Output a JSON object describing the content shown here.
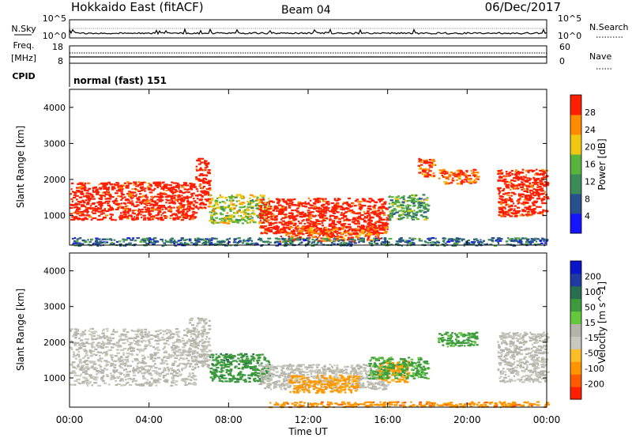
{
  "header": {
    "station": "Hokkaido East (fitACF)",
    "beam": "Beam 04",
    "date": "06/Dec/2017"
  },
  "nsky_panel": {
    "left_label": "N.Sky",
    "right_label": "N.Search",
    "left_ticks": [
      "10^5",
      "10^0"
    ],
    "right_ticks": [
      "10^5",
      "10^0"
    ]
  },
  "freq_panel": {
    "left_label_1": "Freq.",
    "left_label_2": "[MHz]",
    "right_label": "Nave",
    "left_ticks": [
      "18",
      "8"
    ],
    "right_ticks": [
      "60",
      "0"
    ]
  },
  "cpid_panel": {
    "left_label": "CPID",
    "text": "normal (fast) 151"
  },
  "colors": {
    "scale": [
      "#0000ff",
      "#2850a0",
      "#3c8c64",
      "#64b446",
      "#f0c800",
      "#f07800",
      "#ff0000"
    ],
    "power_scale": [
      "#1414ff",
      "#28508c",
      "#3c8c5a",
      "#5ab43c",
      "#f0c814",
      "#ff8c00",
      "#ff1e00"
    ],
    "velocity_scale": [
      "#ff1e00",
      "#ff5a00",
      "#ff9600",
      "#ffbe28",
      "#c8c8be",
      "#b4b4aa",
      "#64c83c",
      "#3c9b3c",
      "#286e50",
      "#1e3ca0",
      "#0a14c8"
    ],
    "ground": "#c0c0b8"
  },
  "chart_data": [
    {
      "type": "heatmap",
      "title": "",
      "ylabel": "Slant Range [km]",
      "xlabel": "",
      "colorbar_label": "Power [dB]",
      "colorbar_ticks": [
        "4",
        "8",
        "12",
        "16",
        "20",
        "24",
        "28"
      ],
      "x_ticks": [
        "00:00",
        "04:00",
        "08:00",
        "12:00",
        "16:00",
        "20:00",
        "00:00"
      ],
      "y_ticks": [
        "1000",
        "2000",
        "3000",
        "4000"
      ],
      "xlim_hours": [
        0,
        24
      ],
      "ylim_km": [
        180,
        4500
      ],
      "echo_regions": [
        {
          "t_start": 0.0,
          "t_end": 6.3,
          "range_min": 900,
          "range_max": 1950,
          "power_db": 28
        },
        {
          "t_start": 6.3,
          "t_end": 7.0,
          "range_min": 1200,
          "range_max": 2600,
          "power_db": 28
        },
        {
          "t_start": 7.0,
          "t_end": 10.0,
          "range_min": 800,
          "range_max": 1600,
          "power_db": 16
        },
        {
          "t_start": 9.5,
          "t_end": 16.0,
          "range_min": 500,
          "range_max": 1500,
          "power_db": 28
        },
        {
          "t_start": 10.5,
          "t_end": 15.5,
          "range_min": 300,
          "range_max": 700,
          "power_db": 24
        },
        {
          "t_start": 16.0,
          "t_end": 18.0,
          "range_min": 900,
          "range_max": 1600,
          "power_db": 12
        },
        {
          "t_start": 17.5,
          "t_end": 18.3,
          "range_min": 2100,
          "range_max": 2600,
          "power_db": 24
        },
        {
          "t_start": 18.5,
          "t_end": 20.5,
          "range_min": 1900,
          "range_max": 2300,
          "power_db": 24
        },
        {
          "t_start": 21.5,
          "t_end": 24.0,
          "range_min": 1000,
          "range_max": 2300,
          "power_db": 28
        },
        {
          "t_start": 0.0,
          "t_end": 24.0,
          "range_min": 180,
          "range_max": 400,
          "power_db": 8
        }
      ]
    },
    {
      "type": "heatmap",
      "title": "",
      "ylabel": "Slant Range [km]",
      "xlabel": "Time UT",
      "colorbar_label": "Velocity [m s^-1]",
      "colorbar_ticks": [
        "-200",
        "-100",
        "-50",
        "-15",
        "15",
        "50",
        "100",
        "200"
      ],
      "x_ticks": [
        "00:00",
        "04:00",
        "08:00",
        "12:00",
        "16:00",
        "20:00",
        "00:00"
      ],
      "y_ticks": [
        "1000",
        "2000",
        "3000",
        "4000"
      ],
      "xlim_hours": [
        0,
        24
      ],
      "ylim_km": [
        180,
        4500
      ],
      "echo_regions": [
        {
          "t_start": 0.0,
          "t_end": 6.3,
          "range_min": 800,
          "range_max": 2400,
          "velocity": 0
        },
        {
          "t_start": 6.0,
          "t_end": 7.0,
          "range_min": 1300,
          "range_max": 2700,
          "velocity": 0
        },
        {
          "t_start": 7.0,
          "t_end": 10.0,
          "range_min": 900,
          "range_max": 1700,
          "velocity": 60
        },
        {
          "t_start": 9.5,
          "t_end": 16.0,
          "range_min": 700,
          "range_max": 1400,
          "velocity": 0
        },
        {
          "t_start": 11.0,
          "t_end": 14.5,
          "range_min": 600,
          "range_max": 1100,
          "velocity": -40
        },
        {
          "t_start": 15.5,
          "t_end": 17.0,
          "range_min": 900,
          "range_max": 1500,
          "velocity": -40
        },
        {
          "t_start": 15.0,
          "t_end": 18.0,
          "range_min": 1000,
          "range_max": 1600,
          "velocity": 40
        },
        {
          "t_start": 18.5,
          "t_end": 20.5,
          "range_min": 1900,
          "range_max": 2300,
          "velocity": 40
        },
        {
          "t_start": 21.5,
          "t_end": 24.0,
          "range_min": 900,
          "range_max": 2300,
          "velocity": 0
        },
        {
          "t_start": 10.0,
          "t_end": 24.0,
          "range_min": 200,
          "range_max": 350,
          "velocity": -60
        }
      ]
    }
  ]
}
